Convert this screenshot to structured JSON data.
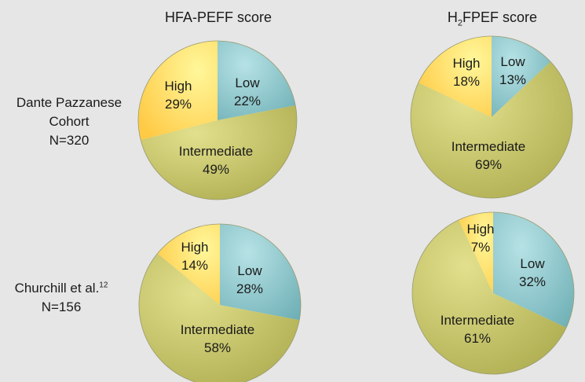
{
  "column_titles": [
    {
      "text": "HFA-PEFF score"
    },
    {
      "prefix": "H",
      "sub": "2",
      "suffix": "FPEF score"
    }
  ],
  "row_labels": [
    {
      "lines": [
        "Dante Pazzanese",
        "Cohort",
        "N=320"
      ]
    },
    {
      "line1": "Churchill et al.",
      "sup": "12",
      "line2": "N=156"
    }
  ],
  "colors": {
    "low": "#8ecbd0",
    "intermediate": "#c6c56a",
    "high": "#ffe866",
    "background": "#e6e6e6"
  },
  "chart_data": [
    {
      "type": "pie",
      "row": "Dante Pazzanese Cohort N=320",
      "column": "HFA-PEFF score",
      "slices": [
        {
          "label": "Low",
          "value": 22
        },
        {
          "label": "Intermediate",
          "value": 49
        },
        {
          "label": "High",
          "value": 29
        }
      ]
    },
    {
      "type": "pie",
      "row": "Dante Pazzanese Cohort N=320",
      "column": "H2FPEF score",
      "slices": [
        {
          "label": "Low",
          "value": 13
        },
        {
          "label": "Intermediate",
          "value": 69
        },
        {
          "label": "High",
          "value": 18
        }
      ]
    },
    {
      "type": "pie",
      "row": "Churchill et al. N=156",
      "column": "HFA-PEFF score",
      "slices": [
        {
          "label": "Low",
          "value": 28
        },
        {
          "label": "Intermediate",
          "value": 58
        },
        {
          "label": "High",
          "value": 14
        }
      ]
    },
    {
      "type": "pie",
      "row": "Churchill et al. N=156",
      "column": "H2FPEF score",
      "slices": [
        {
          "label": "Low",
          "value": 32
        },
        {
          "label": "Intermediate",
          "value": 61
        },
        {
          "label": "High",
          "value": 7
        }
      ]
    }
  ]
}
